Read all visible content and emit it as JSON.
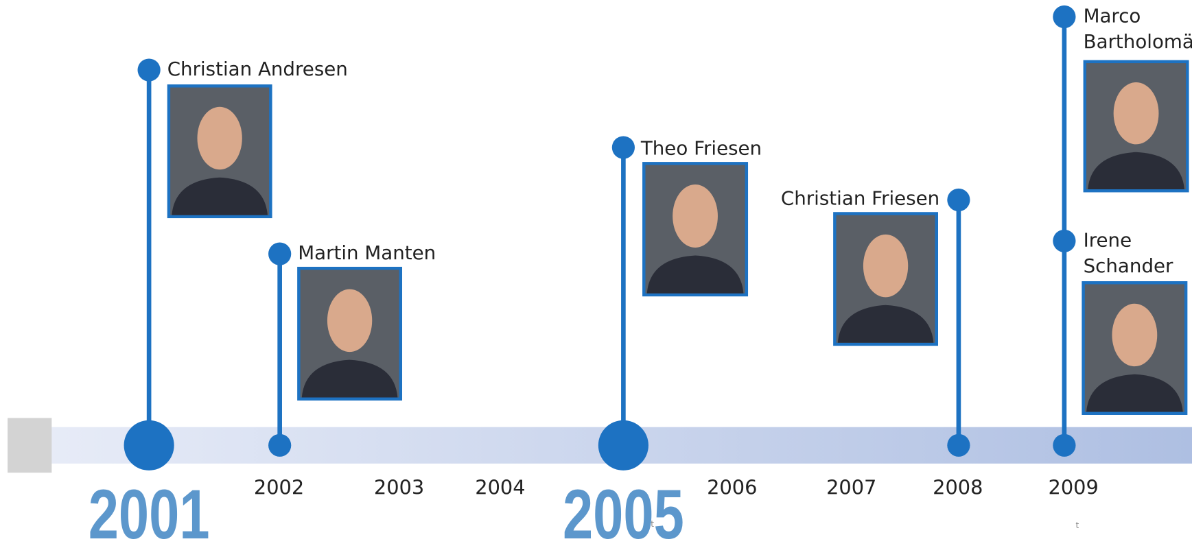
{
  "years": [
    {
      "label": "2001",
      "major": true
    },
    {
      "label": "2002",
      "major": false
    },
    {
      "label": "2003",
      "major": false
    },
    {
      "label": "2004",
      "major": false
    },
    {
      "label": "2005",
      "major": true
    },
    {
      "label": "2006",
      "major": false
    },
    {
      "label": "2007",
      "major": false
    },
    {
      "label": "2008",
      "major": false
    },
    {
      "label": "2009",
      "major": false
    }
  ],
  "people": [
    {
      "name_lines": [
        "Christian Andresen"
      ]
    },
    {
      "name_lines": [
        "Martin Manten"
      ]
    },
    {
      "name_lines": [
        "Theo Friesen"
      ]
    },
    {
      "name_lines": [
        "Christian Friesen"
      ]
    },
    {
      "name_lines": [
        "Marco",
        "Bartholomä"
      ]
    },
    {
      "name_lines": [
        "Irene",
        "Schander"
      ]
    }
  ],
  "marks": [
    "t",
    "t"
  ]
}
